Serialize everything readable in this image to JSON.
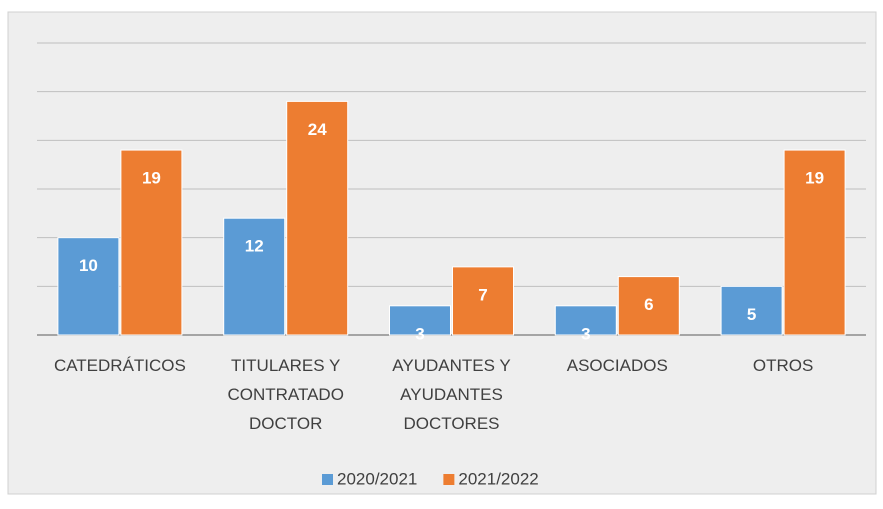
{
  "chart_data": {
    "type": "bar",
    "categories": [
      "CATEDRÁTICOS",
      "TITULARES Y CONTRATADO DOCTOR",
      "AYUDANTES Y AYUDANTES DOCTORES",
      "ASOCIADOS",
      "OTROS"
    ],
    "series": [
      {
        "name": "2020/2021",
        "color": "#5b9bd5",
        "values": [
          10,
          12,
          3,
          3,
          5
        ]
      },
      {
        "name": "2021/2022",
        "color": "#ed7d31",
        "values": [
          19,
          24,
          7,
          6,
          19
        ]
      }
    ],
    "ylim": [
      0,
      30
    ],
    "yticks": [
      0,
      5,
      10,
      15,
      20,
      25,
      30
    ],
    "grid": true,
    "legend": "bottom"
  }
}
